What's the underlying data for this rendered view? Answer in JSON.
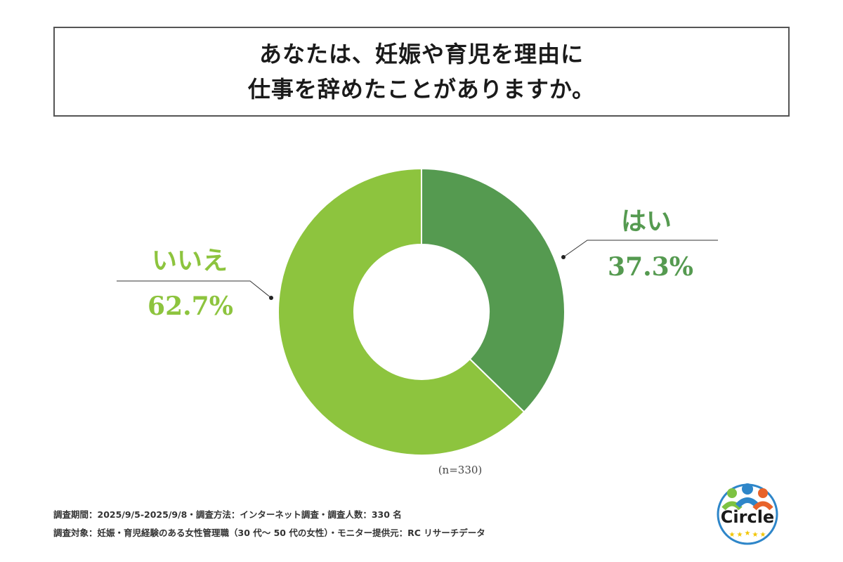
{
  "title": {
    "line1": "あなたは、妊娠や育児を理由に",
    "line2": "仕事を辞めたことがありますか。"
  },
  "chart_data": {
    "type": "pie",
    "variant": "donut",
    "title": "あなたは、妊娠や育児を理由に仕事を辞めたことがありますか。",
    "categories": [
      "はい",
      "いいえ"
    ],
    "values": [
      37.3,
      62.7
    ],
    "value_labels": [
      "37.3%",
      "62.7%"
    ],
    "colors": [
      "#559a50",
      "#8dc43e"
    ],
    "sample_size": "(n=330)"
  },
  "footer": {
    "line1": "調査期間：2025/9/5-2025/9/8・調査方法：インターネット調査・調査人数：330 名",
    "line2": "調査対象：妊娠・育児経験のある女性管理職（30 代～ 50 代の女性）・モニター提供元：RC リサーチデータ"
  },
  "logo": {
    "text": "Circle",
    "colors": [
      "#7dc242",
      "#2e86c9",
      "#e8632a",
      "#f2c500"
    ]
  }
}
